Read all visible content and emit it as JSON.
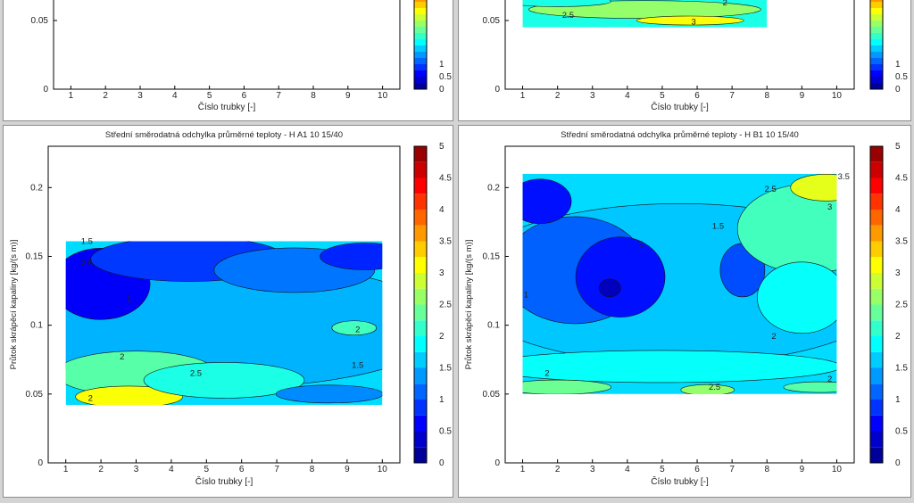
{
  "chart_data": [
    {
      "id": "top-left",
      "type": "contour",
      "title": "",
      "xlabel": "Číslo trubky [-]",
      "ylabel": "",
      "x_ticks": [
        1,
        2,
        3,
        4,
        5,
        6,
        7,
        8,
        9,
        10
      ],
      "y_ticks": [
        {
          "v": 0,
          "label": "0"
        },
        {
          "v": 0.05,
          "label": "0.05"
        }
      ],
      "xlim": [
        0.5,
        10.5
      ],
      "ylim": [
        0,
        0.23
      ],
      "colorbar": {
        "ticks": [
          {
            "v": 0,
            "label": "0"
          },
          {
            "v": 0.5,
            "label": "0.5"
          },
          {
            "v": 1,
            "label": "1"
          }
        ],
        "range": [
          0,
          5
        ]
      },
      "contour_labels": []
    },
    {
      "id": "top-right",
      "type": "contour",
      "title": "",
      "xlabel": "Číslo trubky [-]",
      "ylabel": "",
      "x_ticks": [
        1,
        2,
        3,
        4,
        5,
        6,
        7,
        8,
        9,
        10
      ],
      "y_ticks": [
        {
          "v": 0,
          "label": "0"
        },
        {
          "v": 0.05,
          "label": "0.05"
        }
      ],
      "xlim": [
        0.5,
        10.5
      ],
      "ylim": [
        0,
        0.23
      ],
      "data_region": {
        "x": [
          1,
          8
        ],
        "y": [
          0.045,
          0.07
        ]
      },
      "colorbar": {
        "ticks": [
          {
            "v": 0,
            "label": "0"
          },
          {
            "v": 0.5,
            "label": "0.5"
          },
          {
            "v": 1,
            "label": "1"
          }
        ],
        "range": [
          0,
          5
        ]
      },
      "contour_labels": [
        {
          "x": 2.3,
          "y": 0.054,
          "label": "2.5"
        },
        {
          "x": 6.8,
          "y": 0.063,
          "label": "2"
        },
        {
          "x": 5.9,
          "y": 0.049,
          "label": "3"
        }
      ]
    },
    {
      "id": "bottom-left",
      "type": "contour",
      "title": "Střední směrodatná odchylka průměrné teploty - H  A1 10  15/40",
      "xlabel": "Číslo trubky [-]",
      "ylabel": "Průtok skrápěcí kapaliny [kg/(s m)]",
      "x_ticks": [
        1,
        2,
        3,
        4,
        5,
        6,
        7,
        8,
        9,
        10
      ],
      "y_ticks": [
        {
          "v": 0,
          "label": "0"
        },
        {
          "v": 0.05,
          "label": "0.05"
        },
        {
          "v": 0.1,
          "label": "0.1"
        },
        {
          "v": 0.15,
          "label": "0.15"
        },
        {
          "v": 0.2,
          "label": "0.2"
        }
      ],
      "xlim": [
        0.5,
        10.5
      ],
      "ylim": [
        0,
        0.23
      ],
      "data_region": {
        "x": [
          1,
          10
        ],
        "y": [
          0.042,
          0.161
        ]
      },
      "colorbar": {
        "ticks": [
          {
            "v": 0,
            "label": "0"
          },
          {
            "v": 0.5,
            "label": "0.5"
          },
          {
            "v": 1,
            "label": "1"
          },
          {
            "v": 1.5,
            "label": "1.5"
          },
          {
            "v": 2,
            "label": "2"
          },
          {
            "v": 2.5,
            "label": "2.5"
          },
          {
            "v": 3,
            "label": "3"
          },
          {
            "v": 3.5,
            "label": "3.5"
          },
          {
            "v": 4,
            "label": "4"
          },
          {
            "v": 4.5,
            "label": "4.5"
          },
          {
            "v": 5,
            "label": "5"
          }
        ],
        "range": [
          0,
          5
        ]
      },
      "contour_labels": [
        {
          "x": 1.6,
          "y": 0.161,
          "label": "1.5"
        },
        {
          "x": 1.6,
          "y": 0.145,
          "label": "2.5"
        },
        {
          "x": 2.8,
          "y": 0.119,
          "label": "1"
        },
        {
          "x": 2.6,
          "y": 0.077,
          "label": "2"
        },
        {
          "x": 4.7,
          "y": 0.065,
          "label": "2.5"
        },
        {
          "x": 9.3,
          "y": 0.097,
          "label": "2"
        },
        {
          "x": 9.3,
          "y": 0.071,
          "label": "1.5"
        },
        {
          "x": 1.7,
          "y": 0.047,
          "label": "2"
        }
      ]
    },
    {
      "id": "bottom-right",
      "type": "contour",
      "title": "Střední směrodatná odchylka průměrné teploty - H  B1 10  15/40",
      "xlabel": "Číslo trubky [-]",
      "ylabel": "Průtok skrápěcí kapaliny [kg/(s m)]",
      "x_ticks": [
        1,
        2,
        3,
        4,
        5,
        6,
        7,
        8,
        9,
        10
      ],
      "y_ticks": [
        {
          "v": 0,
          "label": "0"
        },
        {
          "v": 0.05,
          "label": "0.05"
        },
        {
          "v": 0.1,
          "label": "0.1"
        },
        {
          "v": 0.15,
          "label": "0.15"
        },
        {
          "v": 0.2,
          "label": "0.2"
        }
      ],
      "xlim": [
        0.5,
        10.5
      ],
      "ylim": [
        0,
        0.23
      ],
      "data_region": {
        "x": [
          1,
          10
        ],
        "y": [
          0.05,
          0.21
        ]
      },
      "colorbar": {
        "ticks": [
          {
            "v": 0,
            "label": "0"
          },
          {
            "v": 0.5,
            "label": "0.5"
          },
          {
            "v": 1,
            "label": "1"
          },
          {
            "v": 1.5,
            "label": "1.5"
          },
          {
            "v": 2,
            "label": "2"
          },
          {
            "v": 2.5,
            "label": "2.5"
          },
          {
            "v": 3,
            "label": "3"
          },
          {
            "v": 3.5,
            "label": "3.5"
          },
          {
            "v": 4,
            "label": "4"
          },
          {
            "v": 4.5,
            "label": "4.5"
          },
          {
            "v": 5,
            "label": "5"
          }
        ],
        "range": [
          0,
          5
        ]
      },
      "contour_labels": [
        {
          "x": 10.2,
          "y": 0.208,
          "label": "3.5"
        },
        {
          "x": 8.1,
          "y": 0.199,
          "label": "2.5"
        },
        {
          "x": 9.8,
          "y": 0.186,
          "label": "3"
        },
        {
          "x": 6.6,
          "y": 0.172,
          "label": "1.5"
        },
        {
          "x": 4.4,
          "y": 0.159,
          "label": "1"
        },
        {
          "x": 1.1,
          "y": 0.122,
          "label": "1"
        },
        {
          "x": 8.2,
          "y": 0.092,
          "label": "2"
        },
        {
          "x": 1.7,
          "y": 0.065,
          "label": "2"
        },
        {
          "x": 6.5,
          "y": 0.055,
          "label": "2.5"
        },
        {
          "x": 9.8,
          "y": 0.061,
          "label": "2"
        }
      ]
    }
  ]
}
